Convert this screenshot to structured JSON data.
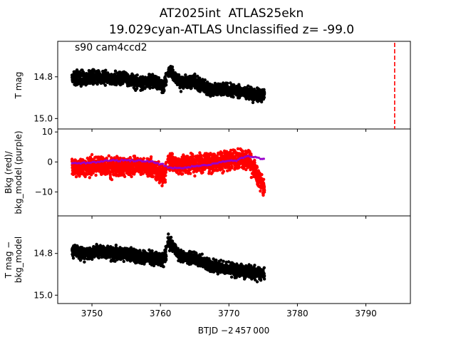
{
  "chart_data": {
    "title": [
      "AT2025int  ATLAS25ekn",
      "19.029cyan-ATLAS Unclassified z= -99.0"
    ],
    "annotation": "s90 cam4ccd2",
    "xlabel": "BTJD −2 457 000",
    "xlim": [
      3745,
      3796.5
    ],
    "xticks": [
      3750,
      3760,
      3770,
      3780,
      3790
    ],
    "marker_line": {
      "x": 3794.2,
      "color": "#ff0000",
      "style": "dashed"
    },
    "panels": [
      {
        "type": "scatter",
        "ylabel": [
          "T mag"
        ],
        "ylim": [
          15.05,
          14.63
        ],
        "yticks": [
          14.8,
          15.0
        ],
        "ytick_labels": [
          "14.8",
          "15.0"
        ],
        "series": [
          {
            "color": "#000000",
            "x": [
              3747,
              3749,
              3751,
              3753,
              3755,
              3757,
              3759,
              3760.5,
              3761.2,
              3763,
              3765,
              3767,
              3769,
              3771,
              3773,
              3775
            ],
            "y": [
              14.8,
              14.81,
              14.8,
              14.81,
              14.81,
              14.83,
              14.82,
              14.85,
              14.77,
              14.83,
              14.82,
              14.86,
              14.86,
              14.87,
              14.88,
              14.89
            ],
            "spread": 0.045
          }
        ]
      },
      {
        "type": "scatter",
        "ylabel": [
          "Bkg (red)/",
          "bkg_model (purple)"
        ],
        "ylim": [
          -18,
          11
        ],
        "yticks": [
          10,
          0,
          -10
        ],
        "ytick_labels": [
          "10",
          "0",
          "−10"
        ],
        "series": [
          {
            "name": "Bkg",
            "color": "#ff0000",
            "x": [
              3747,
              3749,
              3751,
              3753,
              3755,
              3757,
              3759,
              3760.5,
              3761.2,
              3763,
              3765,
              3767,
              3769,
              3771,
              3773,
              3775
            ],
            "y": [
              -1.5,
              -2,
              -1,
              -2,
              -1.5,
              -1,
              -2,
              -5,
              0,
              -1,
              -1,
              0,
              0,
              1,
              0,
              -8
            ],
            "spread": 4.5
          },
          {
            "name": "bkg_model",
            "color": "#9900cc",
            "x": [
              3747,
              3749,
              3751,
              3753,
              3755,
              3757,
              3759,
              3760.5,
              3761.2,
              3763,
              3765,
              3767,
              3769,
              3771,
              3773,
              3775
            ],
            "y": [
              -0.5,
              -0.3,
              0,
              0.5,
              0.5,
              0.3,
              0,
              -1,
              -2,
              -2,
              -1.5,
              -1,
              0,
              0.5,
              2,
              1
            ],
            "spread": 0.4
          }
        ]
      },
      {
        "type": "scatter",
        "ylabel": [
          "T mag −",
          "bkg_model"
        ],
        "ylim": [
          15.04,
          14.62
        ],
        "yticks": [
          14.8,
          15.0
        ],
        "ytick_labels": [
          "14.8",
          "15.0"
        ],
        "series": [
          {
            "color": "#000000",
            "x": [
              3747,
              3749,
              3751,
              3753,
              3755,
              3757,
              3759,
              3760.5,
              3761.2,
              3763,
              3765,
              3767,
              3769,
              3771,
              3773,
              3775
            ],
            "y": [
              14.79,
              14.8,
              14.79,
              14.8,
              14.8,
              14.82,
              14.82,
              14.84,
              14.74,
              14.82,
              14.82,
              14.86,
              14.87,
              14.88,
              14.89,
              14.9
            ],
            "spread": 0.045
          }
        ]
      }
    ]
  }
}
